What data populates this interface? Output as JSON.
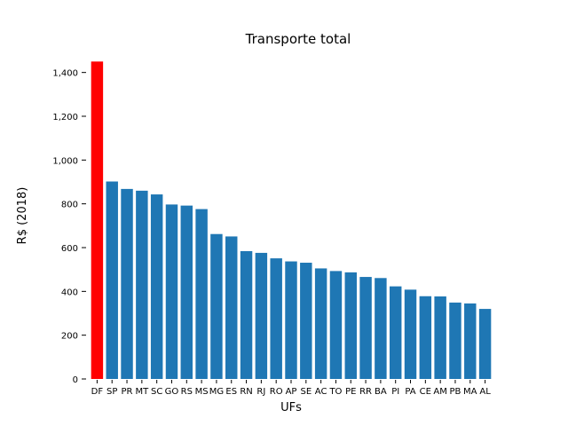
{
  "chart_data": {
    "type": "bar",
    "title": "Transporte total",
    "xlabel": "UFs",
    "ylabel": "R$ (2018)",
    "ylim": [
      0,
      1500
    ],
    "yticks": [
      0,
      200,
      400,
      600,
      800,
      1000,
      1200,
      1400
    ],
    "ytick_labels": [
      "0",
      "200",
      "400",
      "600",
      "800",
      "1,000",
      "1,200",
      "1,400"
    ],
    "categories": [
      "DF",
      "SP",
      "PR",
      "MT",
      "SC",
      "GO",
      "RS",
      "MS",
      "MG",
      "ES",
      "RN",
      "RJ",
      "RO",
      "AP",
      "SE",
      "AC",
      "TO",
      "PE",
      "RR",
      "BA",
      "PI",
      "PA",
      "CE",
      "AM",
      "PB",
      "MA",
      "AL"
    ],
    "values": [
      1450,
      902,
      868,
      860,
      843,
      797,
      792,
      776,
      662,
      651,
      584,
      576,
      551,
      537,
      531,
      505,
      493,
      487,
      466,
      461,
      423,
      408,
      378,
      377,
      349,
      345,
      320
    ],
    "highlight_index": 0,
    "colors": {
      "default": "#1f77b4",
      "highlight": "#ff0000"
    },
    "grid": false,
    "legend": "none"
  }
}
